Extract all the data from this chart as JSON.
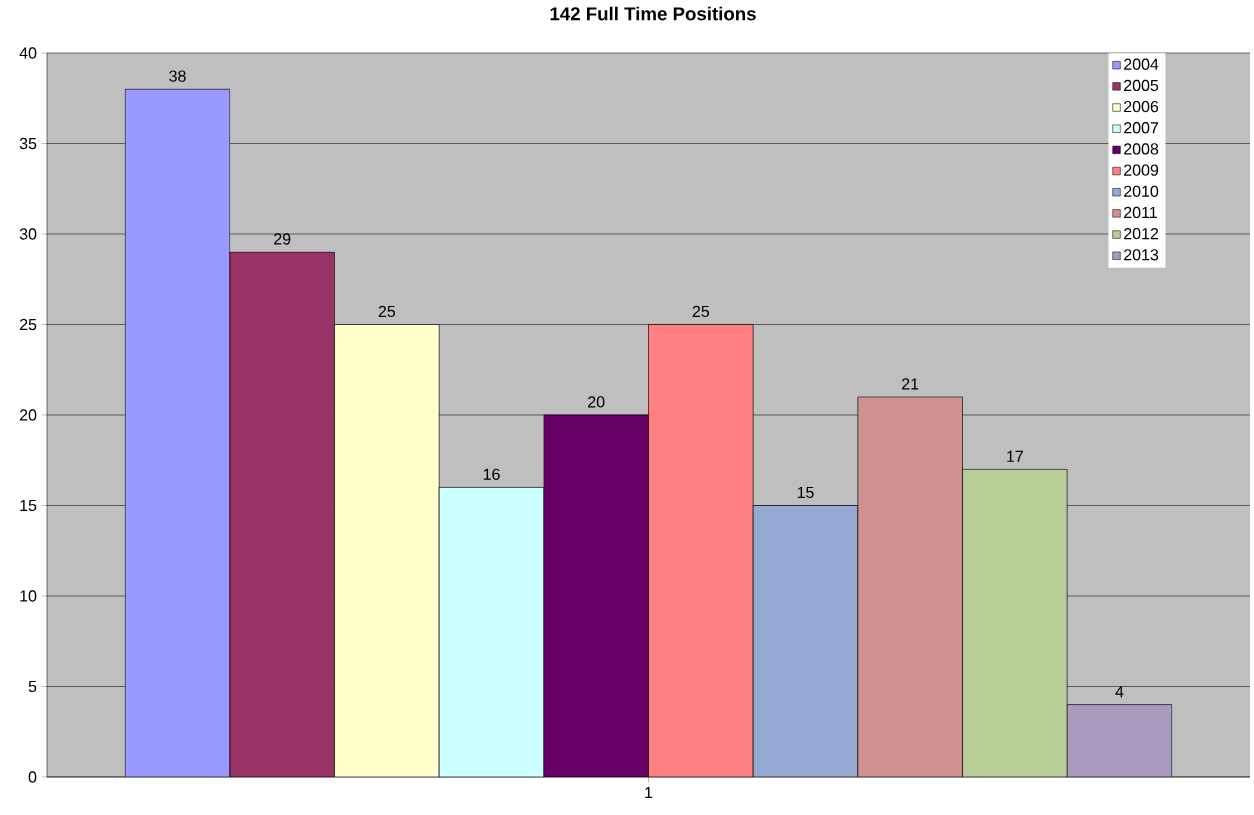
{
  "chart_data": {
    "type": "bar",
    "title": "142 Full Time Positions",
    "categories": [
      "1"
    ],
    "series": [
      {
        "name": "2004",
        "color": "#9999ff",
        "values": [
          38
        ]
      },
      {
        "name": "2005",
        "color": "#993366",
        "values": [
          29
        ]
      },
      {
        "name": "2006",
        "color": "#ffffcc",
        "values": [
          25
        ]
      },
      {
        "name": "2007",
        "color": "#ccffff",
        "values": [
          16
        ]
      },
      {
        "name": "2008",
        "color": "#660066",
        "values": [
          20
        ]
      },
      {
        "name": "2009",
        "color": "#ff8080",
        "values": [
          25
        ]
      },
      {
        "name": "2010",
        "color": "#95aad2",
        "values": [
          15
        ]
      },
      {
        "name": "2011",
        "color": "#d09291",
        "values": [
          21
        ]
      },
      {
        "name": "2012",
        "color": "#b9cd96",
        "values": [
          17
        ]
      },
      {
        "name": "2013",
        "color": "#a99bbd",
        "values": [
          4
        ]
      }
    ],
    "ylim": [
      0,
      40
    ],
    "yticks": [
      0,
      5,
      10,
      15,
      20,
      25,
      30,
      35,
      40
    ],
    "grid": "y",
    "legend": "top right",
    "data_labels": true
  }
}
